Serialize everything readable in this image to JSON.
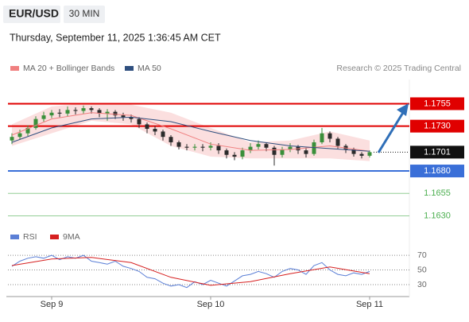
{
  "header": {
    "symbol": "EUR/USD",
    "timeframe": "30 MIN",
    "timestamp": "Thursday, September 11, 2025 1:36:45 AM CET",
    "credit": "Research © 2025 Trading Central"
  },
  "chart_data": [
    {
      "type": "candlestick",
      "xlim": [
        -0.5,
        50
      ],
      "ylim": [
        1.1618,
        1.1782
      ],
      "xticks": [
        {
          "value": 5,
          "label": "Sep 9"
        },
        {
          "value": 25,
          "label": "Sep 10"
        },
        {
          "value": 45,
          "label": "Sep 11"
        }
      ],
      "up_color": "#3a8f3a",
      "down_color": "#2b2b2b",
      "open": [
        1.1714,
        1.1718,
        1.1722,
        1.1728,
        1.1738,
        1.1742,
        1.1745,
        1.1744,
        1.1748,
        1.1747,
        1.175,
        1.1748,
        1.1744,
        1.1746,
        1.1742,
        1.174,
        1.1738,
        1.1732,
        1.1727,
        1.1724,
        1.1718,
        1.1712,
        1.1707,
        1.1706,
        1.1707,
        1.1706,
        1.1708,
        1.1703,
        1.1698,
        1.1696,
        1.1703,
        1.1707,
        1.171,
        1.1706,
        1.1698,
        1.1704,
        1.1707,
        1.1703,
        1.1699,
        1.1712,
        1.1722,
        1.1716,
        1.1708,
        1.1704,
        1.1699,
        1.1697
      ],
      "high": [
        1.1722,
        1.1726,
        1.1731,
        1.1741,
        1.1746,
        1.1748,
        1.1749,
        1.1752,
        1.1751,
        1.1753,
        1.1752,
        1.175,
        1.1749,
        1.1748,
        1.1745,
        1.1743,
        1.174,
        1.1734,
        1.173,
        1.1726,
        1.172,
        1.1714,
        1.171,
        1.171,
        1.171,
        1.1712,
        1.1711,
        1.1705,
        1.1701,
        1.1706,
        1.1711,
        1.1714,
        1.1712,
        1.1708,
        1.1707,
        1.1711,
        1.1709,
        1.1706,
        1.1715,
        1.1728,
        1.1724,
        1.1718,
        1.171,
        1.1706,
        1.1701,
        1.1703
      ],
      "low": [
        1.171,
        1.1715,
        1.1719,
        1.1726,
        1.1735,
        1.1739,
        1.174,
        1.1741,
        1.1743,
        1.1744,
        1.1744,
        1.174,
        1.1736,
        1.1738,
        1.1736,
        1.1734,
        1.1728,
        1.1722,
        1.172,
        1.1714,
        1.1708,
        1.1704,
        1.1703,
        1.1703,
        1.1702,
        1.1703,
        1.1699,
        1.1694,
        1.1692,
        1.1693,
        1.17,
        1.1704,
        1.1702,
        1.1686,
        1.1695,
        1.1701,
        1.1699,
        1.1695,
        1.1697,
        1.171,
        1.1712,
        1.1705,
        1.17,
        1.1696,
        1.1694,
        1.1695
      ],
      "close": [
        1.1718,
        1.1722,
        1.1728,
        1.1738,
        1.1742,
        1.1745,
        1.1744,
        1.1748,
        1.1747,
        1.175,
        1.1748,
        1.1744,
        1.1746,
        1.1742,
        1.174,
        1.1738,
        1.1732,
        1.1727,
        1.1724,
        1.1718,
        1.1712,
        1.1707,
        1.1706,
        1.1707,
        1.1706,
        1.1708,
        1.1703,
        1.1698,
        1.1696,
        1.1703,
        1.1707,
        1.171,
        1.1706,
        1.1698,
        1.1704,
        1.1707,
        1.1703,
        1.1699,
        1.1712,
        1.1722,
        1.1716,
        1.1708,
        1.1704,
        1.1699,
        1.1697,
        1.1701
      ],
      "ma_x": [
        0,
        5,
        10,
        15,
        20,
        25,
        30,
        35,
        40,
        45
      ],
      "series": [
        {
          "name": "MA 20 + Bollinger Bands",
          "color": "#f08080",
          "values": [
            1.172,
            1.1738,
            1.1745,
            1.1742,
            1.1727,
            1.171,
            1.1703,
            1.1704,
            1.1708,
            1.1702
          ],
          "upper": [
            1.1732,
            1.1752,
            1.1756,
            1.1754,
            1.1745,
            1.1728,
            1.1712,
            1.1714,
            1.1724,
            1.1714
          ],
          "lower": [
            1.1708,
            1.1722,
            1.1736,
            1.1732,
            1.1708,
            1.1696,
            1.1694,
            1.1694,
            1.1694,
            1.1691
          ]
        },
        {
          "name": "MA 50",
          "color": "#2f4f7f",
          "values": [
            1.1712,
            1.1728,
            1.1738,
            1.174,
            1.1735,
            1.1724,
            1.1714,
            1.1708,
            1.1705,
            1.1702
          ]
        }
      ],
      "levels": [
        {
          "value": 1.1755,
          "color": "#e00000",
          "box": true
        },
        {
          "value": 1.173,
          "label": "1.1730",
          "color": "#e00000",
          "box": true
        },
        {
          "value": 1.1701,
          "color": "#111111",
          "box": true,
          "dotted": true
        },
        {
          "value": 1.168,
          "label": "1.1680",
          "color": "#3a6fd8",
          "box": true
        },
        {
          "value": 1.1655,
          "color": "#4caf50",
          "box": false
        },
        {
          "value": 1.163,
          "label": "1.1630",
          "color": "#4caf50",
          "box": false
        }
      ]
    },
    {
      "type": "line",
      "xlim": [
        -0.5,
        50
      ],
      "ylim": [
        17,
        82
      ],
      "yticks": [
        30,
        50,
        70
      ],
      "series": [
        {
          "name": "RSI",
          "color": "#5b7fd6",
          "values": [
            55,
            62,
            66,
            68,
            66,
            70,
            64,
            68,
            66,
            70,
            62,
            60,
            58,
            62,
            55,
            52,
            48,
            40,
            38,
            32,
            28,
            30,
            26,
            34,
            30,
            36,
            32,
            28,
            35,
            42,
            44,
            48,
            45,
            40,
            48,
            52,
            50,
            44,
            56,
            60,
            50,
            44,
            42,
            46,
            44,
            48
          ]
        },
        {
          "name": "9MA",
          "color": "#d62020",
          "x": [
            0,
            5,
            10,
            15,
            20,
            25,
            30,
            35,
            40,
            45
          ],
          "values": [
            56,
            65,
            67,
            60,
            40,
            29,
            34,
            45,
            54,
            45
          ]
        }
      ]
    }
  ]
}
